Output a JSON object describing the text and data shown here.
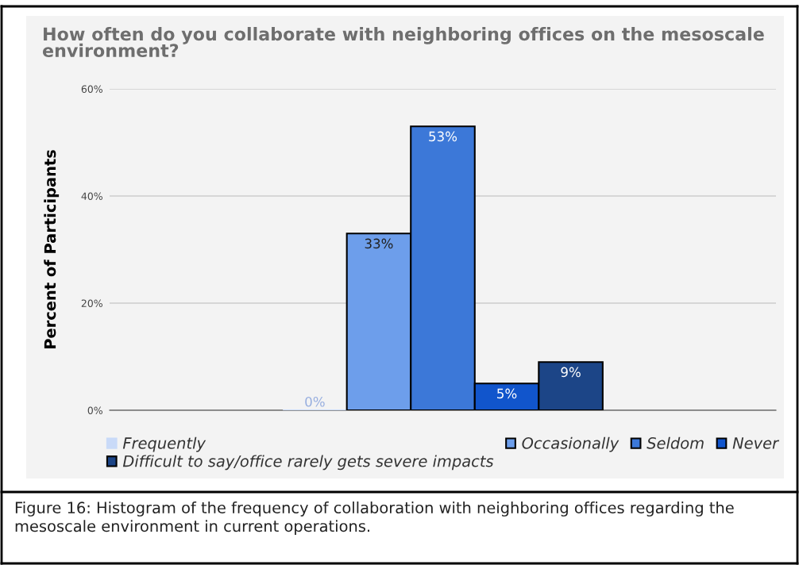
{
  "chart_data": {
    "type": "bar",
    "title": "How often do you collaborate with neighboring offices on the mesoscale environment?",
    "ylabel": "Percent of Participants",
    "categories": [
      null
    ],
    "series": [
      {
        "name": "Frequently",
        "color": "#c9daf8",
        "values": [
          0
        ],
        "value_labels": [
          "0%"
        ]
      },
      {
        "name": "Occasionally",
        "color": "#6d9eeb",
        "values": [
          33
        ],
        "value_labels": [
          "33%"
        ]
      },
      {
        "name": "Seldom",
        "color": "#3c78d8",
        "values": [
          53
        ],
        "value_labels": [
          "53%"
        ]
      },
      {
        "name": "Never",
        "color": "#1155cc",
        "values": [
          5
        ],
        "value_labels": [
          "5%"
        ]
      },
      {
        "name": "Difficult to say/office rarely gets severe impacts",
        "color": "#1c4587",
        "values": [
          9
        ],
        "value_labels": [
          "9%"
        ]
      }
    ],
    "ylim": [
      0,
      60
    ],
    "yticks": [
      {
        "value": 0,
        "label": "0%"
      },
      {
        "value": 20,
        "label": "20%"
      },
      {
        "value": 40,
        "label": "40%"
      },
      {
        "value": 60,
        "label": "60%"
      }
    ],
    "grid": "y",
    "legend": "bottom",
    "annotations": [
      "Figure 16: Histogram of the frequency of collaboration with neighboring offices regarding the mesoscale environment in current operations."
    ]
  }
}
